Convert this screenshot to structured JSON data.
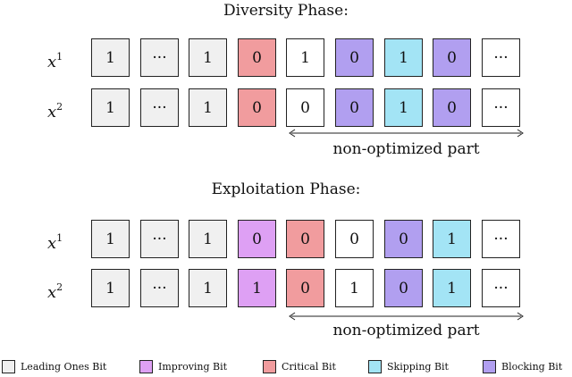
{
  "diversity": {
    "title": "Diversity Phase:",
    "rows": [
      {
        "var": "x",
        "sup": "1",
        "cells": [
          {
            "type": "leading",
            "text": "1"
          },
          {
            "type": "leading",
            "text": "···"
          },
          {
            "type": "leading",
            "text": "1"
          },
          {
            "type": "critical",
            "text": "0"
          },
          {
            "type": "plain",
            "text": "1"
          },
          {
            "type": "blocking",
            "text": "0"
          },
          {
            "type": "skipping",
            "text": "1"
          },
          {
            "type": "blocking",
            "text": "0"
          },
          {
            "type": "plain",
            "text": "···"
          }
        ]
      },
      {
        "var": "x",
        "sup": "2",
        "cells": [
          {
            "type": "leading",
            "text": "1"
          },
          {
            "type": "leading",
            "text": "···"
          },
          {
            "type": "leading",
            "text": "1"
          },
          {
            "type": "critical",
            "text": "0"
          },
          {
            "type": "plain",
            "text": "0"
          },
          {
            "type": "blocking",
            "text": "0"
          },
          {
            "type": "skipping",
            "text": "1"
          },
          {
            "type": "blocking",
            "text": "0"
          },
          {
            "type": "plain",
            "text": "···"
          }
        ]
      }
    ],
    "nonopt_label": "non-optimized part"
  },
  "exploitation": {
    "title": "Exploitation Phase:",
    "rows": [
      {
        "var": "x",
        "sup": "1",
        "cells": [
          {
            "type": "leading",
            "text": "1"
          },
          {
            "type": "leading",
            "text": "···"
          },
          {
            "type": "leading",
            "text": "1"
          },
          {
            "type": "improving",
            "text": "0"
          },
          {
            "type": "critical",
            "text": "0"
          },
          {
            "type": "plain",
            "text": "0"
          },
          {
            "type": "blocking",
            "text": "0"
          },
          {
            "type": "skipping",
            "text": "1"
          },
          {
            "type": "plain",
            "text": "···"
          }
        ]
      },
      {
        "var": "x",
        "sup": "2",
        "cells": [
          {
            "type": "leading",
            "text": "1"
          },
          {
            "type": "leading",
            "text": "···"
          },
          {
            "type": "leading",
            "text": "1"
          },
          {
            "type": "improving",
            "text": "1"
          },
          {
            "type": "critical",
            "text": "0"
          },
          {
            "type": "plain",
            "text": "1"
          },
          {
            "type": "blocking",
            "text": "0"
          },
          {
            "type": "skipping",
            "text": "1"
          },
          {
            "type": "plain",
            "text": "···"
          }
        ]
      }
    ],
    "nonopt_label": "non-optimized part"
  },
  "legend": [
    {
      "type": "leading",
      "label": "Leading Ones Bit"
    },
    {
      "type": "improving",
      "label": "Improving Bit"
    },
    {
      "type": "critical",
      "label": "Critical Bit"
    },
    {
      "type": "skipping",
      "label": "Skipping Bit"
    },
    {
      "type": "blocking",
      "label": "Blocking Bit"
    }
  ],
  "colors": {
    "leading": "#f0f0f0",
    "improving": "#dea0f4",
    "critical": "#f19c9e",
    "skipping": "#a3e4f5",
    "blocking": "#b19ff0"
  }
}
